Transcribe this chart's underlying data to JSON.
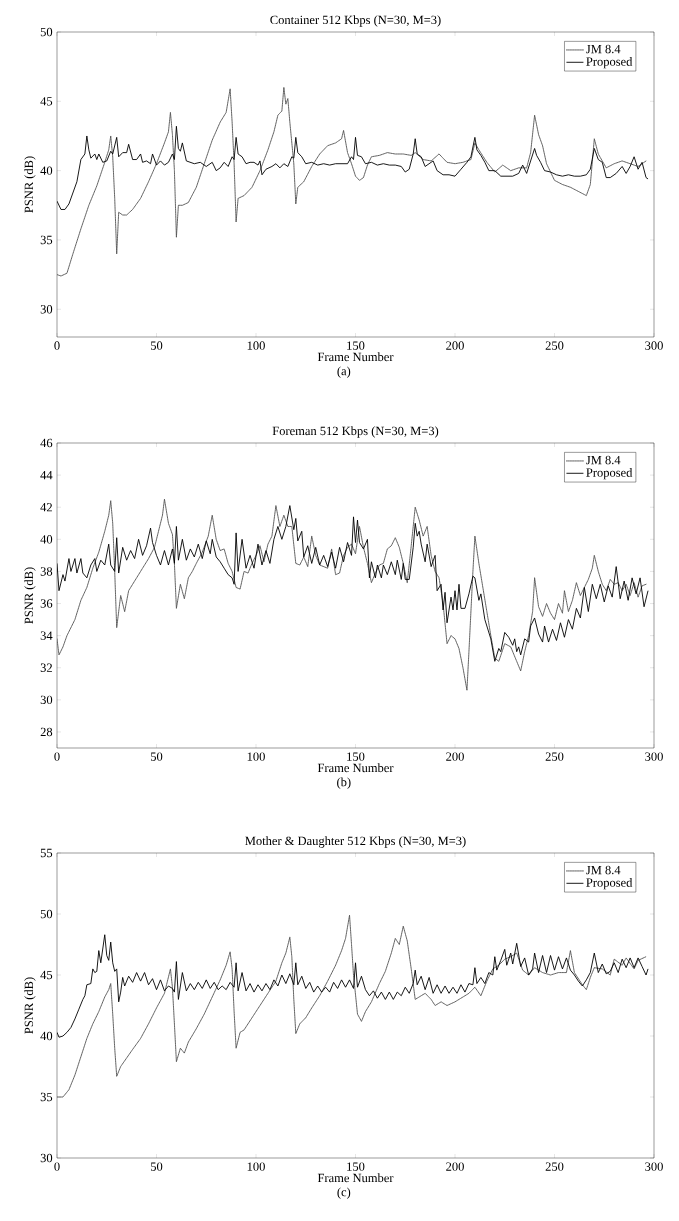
{
  "chart_data": [
    {
      "type": "line",
      "title": "Container 512 Kbps (N=30, M=3)",
      "xlabel": "Frame Number",
      "ylabel": "PSNR (dB)",
      "annotations": [
        "(a)"
      ],
      "xlim": [
        0,
        300
      ],
      "ylim": [
        28,
        50
      ],
      "xticks": [
        0,
        50,
        100,
        150,
        200,
        250,
        300
      ],
      "yticks": [
        30,
        35,
        40,
        45,
        50
      ],
      "legend": "top right",
      "marker": "none",
      "series": [
        {
          "name": "JM 8.4",
          "color": "#505050",
          "line_style": "dotted",
          "x": [
            0,
            2,
            5,
            8,
            12,
            16,
            20,
            24,
            26,
            27,
            28,
            29,
            30,
            31,
            33,
            35,
            38,
            42,
            46,
            50,
            54,
            56,
            57,
            58,
            59,
            60,
            61,
            63,
            66,
            70,
            74,
            78,
            82,
            85,
            87,
            88,
            89,
            90,
            91,
            94,
            98,
            102,
            106,
            109,
            111,
            113,
            114,
            115,
            116,
            117,
            119,
            120,
            121,
            124,
            128,
            132,
            136,
            140,
            143,
            144,
            146,
            148,
            150,
            152,
            154,
            156,
            158,
            162,
            166,
            170,
            174,
            178,
            180,
            184,
            188,
            192,
            196,
            200,
            204,
            208,
            210,
            212,
            216,
            220,
            224,
            228,
            232,
            236,
            238,
            240,
            242,
            244,
            246,
            250,
            254,
            258,
            262,
            266,
            268,
            270,
            272,
            276,
            280,
            284,
            288,
            292,
            296
          ],
          "values": [
            32.5,
            32.4,
            32.6,
            34.0,
            35.8,
            37.5,
            38.9,
            40.6,
            41.5,
            42.5,
            41.0,
            38.0,
            34.0,
            37.0,
            36.8,
            36.8,
            37.2,
            38.0,
            39.2,
            40.5,
            42.0,
            42.8,
            44.2,
            42.6,
            40.0,
            35.2,
            37.5,
            37.5,
            37.7,
            38.8,
            40.5,
            42.2,
            43.5,
            44.2,
            45.9,
            43.5,
            40.5,
            36.3,
            38.0,
            38.2,
            38.8,
            40.0,
            41.5,
            42.8,
            44.0,
            44.3,
            46.0,
            44.8,
            45.2,
            43.5,
            40.5,
            37.6,
            38.8,
            39.2,
            40.3,
            41.2,
            41.8,
            42.0,
            42.3,
            42.9,
            41.3,
            40.5,
            39.6,
            39.3,
            39.5,
            40.4,
            41.0,
            41.1,
            41.3,
            41.2,
            41.2,
            41.1,
            41.3,
            40.8,
            40.7,
            41.2,
            40.6,
            40.5,
            40.6,
            40.8,
            42.0,
            41.5,
            40.6,
            39.9,
            40.4,
            40.0,
            40.2,
            40.2,
            41.3,
            44.0,
            42.6,
            41.8,
            40.5,
            39.3,
            39.0,
            38.8,
            38.5,
            38.2,
            39.0,
            42.3,
            41.2,
            40.2,
            40.5,
            40.7,
            40.5,
            40.3,
            40.7
          ]
        },
        {
          "name": "Proposed",
          "color": "#000000",
          "line_style": "solid",
          "x": [
            0,
            2,
            4,
            6,
            8,
            10,
            12,
            14,
            15,
            16,
            17,
            19,
            20,
            21,
            23,
            25,
            27,
            28,
            30,
            31,
            33,
            35,
            36,
            38,
            40,
            42,
            43,
            45,
            47,
            48,
            50,
            52,
            54,
            56,
            58,
            59,
            60,
            61,
            62,
            63,
            65,
            67,
            69,
            72,
            75,
            78,
            80,
            82,
            84,
            86,
            88,
            89,
            90,
            91,
            93,
            95,
            97,
            99,
            101,
            102,
            103,
            105,
            108,
            110,
            112,
            114,
            116,
            118,
            119,
            120,
            121,
            123,
            125,
            128,
            131,
            134,
            137,
            140,
            143,
            146,
            148,
            149,
            150,
            151,
            153,
            155,
            158,
            161,
            164,
            167,
            170,
            173,
            175,
            177,
            179,
            180,
            181,
            183,
            185,
            187,
            189,
            191,
            194,
            197,
            200,
            203,
            206,
            208,
            210,
            211,
            213,
            215,
            217,
            220,
            223,
            226,
            229,
            232,
            234,
            236,
            238,
            240,
            241,
            243,
            245,
            248,
            251,
            254,
            257,
            260,
            263,
            266,
            268,
            270,
            272,
            274,
            276,
            278,
            281,
            284,
            286,
            288,
            290,
            292,
            294,
            296,
            297
          ],
          "values": [
            37.8,
            37.2,
            37.2,
            37.6,
            38.4,
            39.2,
            40.8,
            41.2,
            42.5,
            41.5,
            40.9,
            41.2,
            40.8,
            41.2,
            40.6,
            40.7,
            41.4,
            41.2,
            42.4,
            41.0,
            41.3,
            41.3,
            41.9,
            40.8,
            40.8,
            41.2,
            40.6,
            40.7,
            40.5,
            41.2,
            40.4,
            40.7,
            40.4,
            40.6,
            41.2,
            40.8,
            43.2,
            41.6,
            41.4,
            42.0,
            40.7,
            40.6,
            40.5,
            40.6,
            40.3,
            40.6,
            40.0,
            40.2,
            40.6,
            40.3,
            41.0,
            40.8,
            42.4,
            41.2,
            41.0,
            40.5,
            40.6,
            40.6,
            40.4,
            40.7,
            39.7,
            40.1,
            40.3,
            40.5,
            40.2,
            40.5,
            40.3,
            41.0,
            40.9,
            42.4,
            41.3,
            41.0,
            40.5,
            40.6,
            40.4,
            40.5,
            40.4,
            40.5,
            40.5,
            40.5,
            41.0,
            40.8,
            42.4,
            41.1,
            41.0,
            40.5,
            40.6,
            40.4,
            40.5,
            40.4,
            40.4,
            40.3,
            39.9,
            40.1,
            41.2,
            42.3,
            41.2,
            41.0,
            40.3,
            40.5,
            40.7,
            40.0,
            39.7,
            39.7,
            39.6,
            40.1,
            40.6,
            41.0,
            42.4,
            41.5,
            41.1,
            40.6,
            40.0,
            40.0,
            39.6,
            39.6,
            39.6,
            39.8,
            40.4,
            39.8,
            40.7,
            41.6,
            41.1,
            40.6,
            40.0,
            39.9,
            39.7,
            39.6,
            39.7,
            39.6,
            39.6,
            39.7,
            40.1,
            41.6,
            40.8,
            40.6,
            39.5,
            39.5,
            39.8,
            40.3,
            39.8,
            40.3,
            41.0,
            40.1,
            40.6,
            39.5,
            39.4
          ]
        }
      ]
    },
    {
      "type": "line",
      "title": "Foreman 512 Kbps (N=30, M=3)",
      "xlabel": "Frame Number",
      "ylabel": "PSNR (dB)",
      "annotations": [
        "(b)"
      ],
      "xlim": [
        0,
        300
      ],
      "ylim": [
        27,
        46
      ],
      "xticks": [
        0,
        50,
        100,
        150,
        200,
        250,
        300
      ],
      "yticks": [
        28,
        30,
        32,
        34,
        36,
        38,
        40,
        42,
        44,
        46
      ],
      "legend": "top right",
      "marker": "none",
      "series": [
        {
          "name": "JM 8.4",
          "color": "#505050",
          "line_style": "dotted",
          "x": [
            0,
            1,
            3,
            5,
            7,
            9,
            12,
            15,
            18,
            21,
            24,
            26,
            27,
            28,
            29,
            30,
            32,
            34,
            36,
            38,
            40,
            43,
            46,
            49,
            51,
            53,
            54,
            56,
            58,
            59,
            60,
            62,
            64,
            66,
            68,
            70,
            73,
            76,
            78,
            80,
            82,
            84,
            86,
            88,
            90,
            92,
            94,
            96,
            98,
            100,
            102,
            104,
            106,
            108,
            110,
            112,
            114,
            116,
            118,
            120,
            122,
            124,
            126,
            128,
            130,
            132,
            134,
            136,
            138,
            140,
            142,
            144,
            146,
            148,
            150,
            152,
            154,
            156,
            158,
            160,
            162,
            164,
            166,
            168,
            170,
            172,
            174,
            176,
            178,
            180,
            182,
            184,
            186,
            188,
            190,
            192,
            194,
            196,
            198,
            200,
            202,
            204,
            206,
            207,
            209,
            210,
            212,
            214,
            216,
            218,
            220,
            222,
            225,
            228,
            231,
            233,
            235,
            237,
            239,
            240,
            242,
            244,
            246,
            248,
            250,
            252,
            254,
            255,
            257,
            259,
            261,
            263,
            265,
            267,
            269,
            270,
            272,
            274,
            276,
            278,
            280,
            282,
            284,
            286,
            288,
            290,
            292,
            294,
            296
          ],
          "values": [
            33.8,
            32.8,
            33.3,
            34.0,
            34.5,
            35.0,
            36.2,
            37.0,
            38.2,
            39.2,
            40.5,
            41.5,
            42.4,
            41.0,
            38.0,
            34.5,
            36.5,
            35.5,
            36.8,
            37.2,
            37.6,
            38.2,
            38.8,
            39.5,
            40.5,
            41.5,
            42.5,
            41.0,
            40.3,
            38.5,
            35.7,
            37.2,
            36.3,
            37.6,
            38.0,
            38.5,
            39.2,
            40.2,
            41.5,
            40.0,
            39.3,
            39.4,
            38.5,
            38.0,
            37.0,
            36.9,
            38.0,
            37.9,
            38.5,
            39.0,
            39.6,
            38.6,
            39.7,
            40.2,
            42.1,
            40.8,
            41.5,
            40.8,
            40.8,
            38.5,
            38.4,
            38.9,
            38.3,
            40.2,
            39.0,
            38.4,
            38.3,
            38.2,
            39.4,
            37.8,
            37.9,
            39.0,
            39.5,
            39.7,
            39.1,
            40.8,
            39.5,
            38.5,
            37.3,
            37.9,
            38.4,
            38.5,
            39.4,
            39.6,
            40.1,
            39.5,
            38.5,
            37.3,
            39.6,
            42.0,
            41.2,
            40.2,
            40.8,
            39.0,
            38.0,
            37.6,
            36.0,
            33.5,
            34.0,
            33.8,
            33.2,
            32.0,
            30.6,
            33.0,
            38.0,
            40.2,
            38.5,
            37.0,
            35.5,
            34.0,
            32.6,
            32.4,
            33.5,
            33.3,
            32.4,
            31.8,
            33.0,
            34.0,
            35.5,
            37.6,
            35.8,
            35.2,
            36.0,
            35.4,
            35.0,
            36.0,
            35.4,
            36.8,
            35.5,
            36.2,
            37.3,
            36.5,
            37.0,
            37.5,
            38.2,
            39.0,
            38.0,
            37.2,
            36.8,
            37.5,
            37.2,
            37.3,
            36.8,
            37.2,
            36.5,
            37.3,
            36.4,
            37.1,
            37.2
          ]
        },
        {
          "name": "Proposed",
          "color": "#000000",
          "line_style": "solid",
          "x": [
            0,
            1,
            3,
            4,
            6,
            7,
            9,
            10,
            12,
            13,
            15,
            17,
            19,
            20,
            22,
            24,
            26,
            27,
            29,
            30,
            31,
            33,
            35,
            37,
            39,
            41,
            43,
            45,
            47,
            48,
            50,
            52,
            54,
            56,
            58,
            59,
            60,
            61,
            63,
            65,
            67,
            69,
            71,
            73,
            75,
            77,
            78,
            80,
            82,
            84,
            86,
            88,
            89,
            90,
            91,
            93,
            95,
            97,
            99,
            101,
            103,
            105,
            107,
            109,
            111,
            113,
            115,
            117,
            119,
            120,
            121,
            123,
            124,
            126,
            128,
            130,
            132,
            134,
            136,
            138,
            140,
            142,
            144,
            146,
            148,
            149,
            150,
            151,
            152,
            154,
            156,
            157,
            158,
            160,
            161,
            163,
            164,
            166,
            168,
            170,
            171,
            173,
            174,
            175,
            177,
            179,
            180,
            181,
            182,
            183,
            185,
            186,
            188,
            190,
            191,
            193,
            194,
            195,
            196,
            198,
            199,
            200,
            201,
            202,
            203,
            205,
            207,
            209,
            210,
            212,
            213,
            215,
            218,
            220,
            222,
            223,
            225,
            227,
            229,
            230,
            231,
            232,
            233,
            235,
            237,
            238,
            240,
            242,
            244,
            245,
            247,
            249,
            251,
            253,
            255,
            257,
            259,
            261,
            263,
            265,
            267,
            269,
            271,
            273,
            275,
            277,
            279,
            281,
            283,
            285,
            287,
            289,
            291,
            293,
            295,
            297
          ],
          "values": [
            38.5,
            36.8,
            37.8,
            37.4,
            38.8,
            38.0,
            38.8,
            37.9,
            38.8,
            37.9,
            37.6,
            38.4,
            38.8,
            38.0,
            38.7,
            38.4,
            39.7,
            38.4,
            38.0,
            40.1,
            37.9,
            39.5,
            38.7,
            39.3,
            38.8,
            40.0,
            39.0,
            39.6,
            40.7,
            39.8,
            39.0,
            38.4,
            39.3,
            38.4,
            39.4,
            38.5,
            40.8,
            38.7,
            40.0,
            38.7,
            39.4,
            38.9,
            39.7,
            38.8,
            39.9,
            39.1,
            40.0,
            38.9,
            38.6,
            38.2,
            37.8,
            37.6,
            37.2,
            40.4,
            38.0,
            40.0,
            38.2,
            39.0,
            38.2,
            39.7,
            38.4,
            39.3,
            38.5,
            40.0,
            40.8,
            40.0,
            40.8,
            42.1,
            40.6,
            41.3,
            39.9,
            40.5,
            38.9,
            39.6,
            38.5,
            39.5,
            38.4,
            39.0,
            38.3,
            39.2,
            38.2,
            39.5,
            38.6,
            39.8,
            39.0,
            41.4,
            39.8,
            41.2,
            39.8,
            39.4,
            40.0,
            37.6,
            38.6,
            37.6,
            38.4,
            37.6,
            38.4,
            37.8,
            38.6,
            37.8,
            38.7,
            37.5,
            38.5,
            37.5,
            37.5,
            39.5,
            41.0,
            40.2,
            40.5,
            39.7,
            38.6,
            39.7,
            38.3,
            39.0,
            36.8,
            37.2,
            35.6,
            36.7,
            34.8,
            36.4,
            35.6,
            36.8,
            35.6,
            37.2,
            35.7,
            35.7,
            36.6,
            37.7,
            37.6,
            36.2,
            36.6,
            35.0,
            33.8,
            32.4,
            33.2,
            33.0,
            34.2,
            33.9,
            33.4,
            33.8,
            33.0,
            33.3,
            32.8,
            33.8,
            33.6,
            34.6,
            35.1,
            34.1,
            33.6,
            34.6,
            33.6,
            34.4,
            33.7,
            34.8,
            33.9,
            35.0,
            34.4,
            35.7,
            35.1,
            37.0,
            35.5,
            37.2,
            36.3,
            37.2,
            36.1,
            37.1,
            36.4,
            38.3,
            36.3,
            37.4,
            36.2,
            37.6,
            36.6,
            37.6,
            35.8,
            36.8
          ]
        }
      ]
    },
    {
      "type": "line",
      "title": "Mother & Daughter 512 Kbps (N=30, M=3)",
      "xlabel": "Frame Number",
      "ylabel": "PSNR (dB)",
      "annotations": [
        "(c)"
      ],
      "xlim": [
        0,
        300
      ],
      "ylim": [
        30,
        55
      ],
      "xticks": [
        0,
        50,
        100,
        150,
        200,
        250,
        300
      ],
      "yticks": [
        30,
        35,
        40,
        45,
        50,
        55
      ],
      "legend": "top right",
      "marker": "none",
      "series": [
        {
          "name": "JM 8.4",
          "color": "#505050",
          "line_style": "dotted",
          "x": [
            0,
            3,
            6,
            9,
            12,
            15,
            18,
            21,
            24,
            26,
            27,
            28,
            29,
            30,
            32,
            35,
            38,
            42,
            46,
            50,
            54,
            57,
            58,
            59,
            60,
            62,
            64,
            66,
            70,
            74,
            78,
            82,
            85,
            87,
            88,
            89,
            90,
            92,
            94,
            98,
            102,
            106,
            110,
            113,
            115,
            117,
            118,
            119,
            120,
            122,
            125,
            128,
            132,
            136,
            140,
            143,
            145,
            147,
            148,
            149,
            151,
            153,
            155,
            158,
            162,
            165,
            168,
            170,
            172,
            174,
            176,
            178,
            180,
            182,
            185,
            188,
            190,
            193,
            196,
            200,
            204,
            207,
            210,
            213,
            216,
            219,
            222,
            225,
            228,
            231,
            234,
            237,
            240,
            244,
            248,
            252,
            256,
            258,
            260,
            264,
            266,
            268,
            270,
            274,
            278,
            280,
            284,
            286,
            290,
            292,
            296
          ],
          "values": [
            35.0,
            35.0,
            35.6,
            36.8,
            38.3,
            39.8,
            41.0,
            42.0,
            43.2,
            43.8,
            44.3,
            41.8,
            39.0,
            36.7,
            37.5,
            38.2,
            38.9,
            39.8,
            41.0,
            42.3,
            43.5,
            45.5,
            44.0,
            41.0,
            37.9,
            39.0,
            38.6,
            39.5,
            40.6,
            41.8,
            43.2,
            44.6,
            45.8,
            46.9,
            45.5,
            42.0,
            39.0,
            40.3,
            40.5,
            41.5,
            42.5,
            43.5,
            44.5,
            46.0,
            46.8,
            48.1,
            46.5,
            43.0,
            40.2,
            41.0,
            41.5,
            42.3,
            43.3,
            44.5,
            45.8,
            47.0,
            48.0,
            49.9,
            47.5,
            45.0,
            41.8,
            41.2,
            42.0,
            42.8,
            44.3,
            45.3,
            46.8,
            48.0,
            47.5,
            49.0,
            47.8,
            45.5,
            43.0,
            43.2,
            43.5,
            43.0,
            42.5,
            42.8,
            42.5,
            42.8,
            43.2,
            43.5,
            44.0,
            43.3,
            44.5,
            45.5,
            45.8,
            46.3,
            46.5,
            46.8,
            45.4,
            45.0,
            45.6,
            45.2,
            45.0,
            45.2,
            45.2,
            47.0,
            45.2,
            44.2,
            43.8,
            44.8,
            45.6,
            45.5,
            45.0,
            46.3,
            45.8,
            46.4,
            45.5,
            46.2,
            46.5
          ]
        },
        {
          "name": "Proposed",
          "color": "#000000",
          "line_style": "solid",
          "x": [
            0,
            1,
            3,
            5,
            7,
            9,
            11,
            13,
            14,
            15,
            17,
            18,
            19,
            20,
            21,
            22,
            24,
            25,
            26,
            27,
            28,
            29,
            30,
            31,
            32,
            33,
            34,
            36,
            38,
            40,
            42,
            44,
            46,
            48,
            50,
            52,
            54,
            56,
            58,
            59,
            60,
            61,
            63,
            65,
            67,
            69,
            71,
            73,
            75,
            77,
            79,
            81,
            83,
            85,
            87,
            89,
            90,
            91,
            93,
            95,
            97,
            99,
            101,
            103,
            105,
            107,
            109,
            111,
            113,
            115,
            117,
            119,
            120,
            121,
            123,
            125,
            127,
            129,
            131,
            133,
            135,
            137,
            139,
            141,
            143,
            145,
            147,
            149,
            150,
            151,
            153,
            155,
            157,
            159,
            161,
            163,
            165,
            167,
            169,
            171,
            173,
            175,
            177,
            179,
            180,
            181,
            183,
            185,
            187,
            189,
            191,
            193,
            195,
            197,
            199,
            201,
            203,
            205,
            207,
            209,
            210,
            211,
            213,
            215,
            217,
            219,
            220,
            221,
            223,
            225,
            226,
            228,
            229,
            231,
            233,
            235,
            237,
            239,
            240,
            242,
            244,
            246,
            248,
            250,
            252,
            254,
            256,
            258,
            260,
            262,
            264,
            266,
            268,
            270,
            272,
            274,
            276,
            278,
            280,
            282,
            284,
            286,
            288,
            290,
            292,
            294,
            296,
            297
          ],
          "values": [
            40.3,
            39.9,
            40.0,
            40.3,
            40.7,
            41.4,
            42.2,
            43.0,
            43.3,
            44.2,
            44.3,
            45.5,
            45.2,
            45.3,
            47.0,
            46.0,
            48.3,
            46.6,
            46.2,
            47.7,
            46.0,
            45.3,
            45.5,
            42.8,
            43.6,
            44.8,
            44.1,
            44.9,
            44.4,
            45.2,
            44.5,
            45.2,
            44.2,
            44.7,
            43.8,
            44.6,
            43.7,
            44.1,
            43.9,
            43.6,
            46.1,
            43.0,
            45.2,
            43.7,
            44.3,
            43.8,
            44.4,
            43.9,
            44.6,
            43.9,
            44.4,
            43.8,
            44.1,
            43.8,
            44.4,
            44.0,
            46.0,
            43.7,
            45.2,
            43.7,
            44.3,
            43.6,
            44.2,
            43.7,
            44.3,
            43.8,
            44.6,
            44.1,
            45.0,
            44.3,
            45.1,
            44.2,
            46.0,
            44.2,
            44.9,
            43.9,
            44.4,
            43.6,
            44.1,
            43.6,
            44.0,
            43.6,
            44.4,
            43.9,
            44.6,
            44.0,
            44.6,
            43.9,
            46.0,
            44.0,
            44.9,
            43.8,
            43.3,
            43.7,
            43.1,
            43.6,
            43.0,
            43.6,
            43.0,
            43.6,
            43.3,
            44.0,
            43.5,
            44.3,
            45.4,
            44.2,
            44.9,
            43.8,
            44.8,
            43.5,
            44.2,
            43.5,
            44.1,
            43.5,
            44.0,
            43.5,
            44.2,
            43.6,
            44.3,
            44.2,
            45.6,
            44.3,
            44.8,
            44.3,
            45.2,
            45.0,
            46.5,
            45.4,
            46.2,
            47.1,
            45.8,
            46.8,
            45.9,
            47.6,
            45.7,
            46.4,
            45.0,
            45.5,
            46.8,
            45.2,
            46.6,
            45.2,
            46.6,
            45.4,
            46.5,
            45.5,
            46.4,
            45.4,
            45.0,
            44.5,
            44.1,
            44.6,
            45.2,
            46.8,
            45.2,
            45.9,
            45.1,
            45.3,
            46.0,
            45.2,
            46.3,
            45.6,
            46.4,
            45.6,
            46.4,
            45.7,
            45.0,
            45.5
          ]
        }
      ]
    }
  ]
}
